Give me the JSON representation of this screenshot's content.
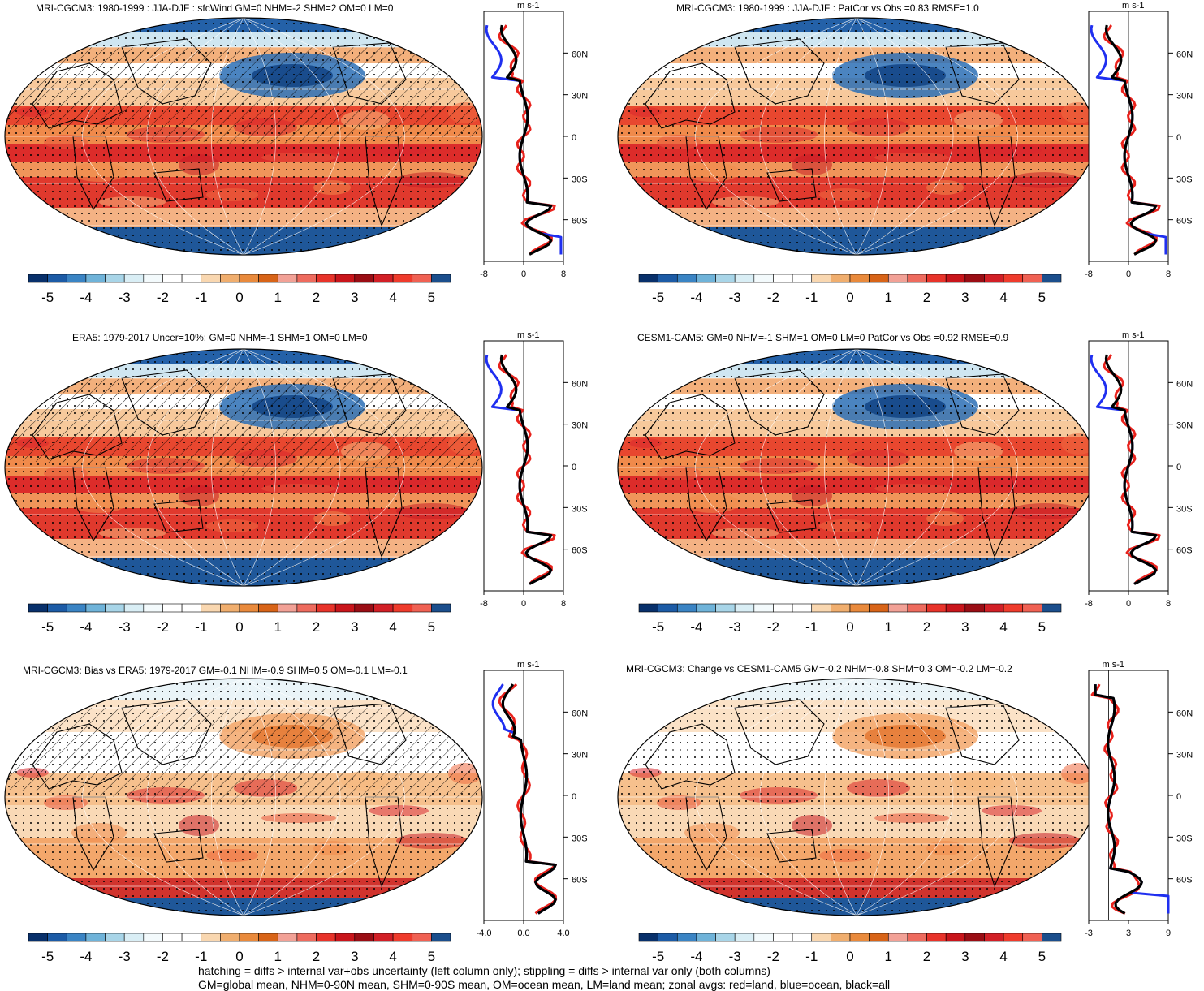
{
  "colorbar": {
    "labels": [
      "-5",
      "-4",
      "-3",
      "-2",
      "-1",
      "0",
      "1",
      "2",
      "3",
      "4",
      "5"
    ],
    "colors": [
      "#08306b",
      "#1c5ba6",
      "#3a84c4",
      "#6fb3d9",
      "#a8d5e8",
      "#d9eef5",
      "#f3fafc",
      "#ffffff",
      "#ffffff",
      "#f9d7b0",
      "#f0ae6e",
      "#e98a3c",
      "#d86418",
      "#f2a196",
      "#ee6b5e",
      "#e8332a",
      "#c9151b",
      "#9a0d14",
      "#d21f26",
      "#ef3b2c",
      "#f06153",
      "#1b4e8c"
    ]
  },
  "legend_colors": {
    "land": "#e8221c",
    "ocean": "#1f2ff0",
    "all": "#000000"
  },
  "footnote": [
    "hatching = diffs > internal var+obs uncertainty (left column only); stippling = diffs > internal var only (both columns)",
    "GM=global mean, NHM=0-90N mean, SHM=0-90S mean, OM=ocean mean, LM=land mean; zonal avgs: red=land, blue=ocean, black=all"
  ],
  "panels": [
    {
      "title": "MRI-CGCM3: 1980-1999 : JJA-DJF : sfcWind GM=0 NHM=-2 SHM=2 OM=0 LM=0",
      "unit": "m s-1",
      "lat_ticks": [
        "60N",
        "30N",
        "0",
        "30S",
        "60S"
      ],
      "x_ticks": [
        "-8",
        "0",
        "8"
      ],
      "chart_data": {
        "type": "line",
        "x_range": [
          -8,
          8
        ],
        "y_range": [
          -90,
          90
        ],
        "y_label_values": [
          60,
          30,
          0,
          -30,
          -60
        ],
        "series": [
          {
            "name": "land",
            "color": "#e8221c"
          },
          {
            "name": "ocean",
            "color": "#1f2ff0"
          },
          {
            "name": "all",
            "color": "#000000"
          }
        ]
      }
    },
    {
      "title": "MRI-CGCM3: 1980-1999 : JJA-DJF : PatCor vs Obs =0.83 RMSE=1.0",
      "unit": "m s-1",
      "lat_ticks": [
        "60N",
        "30N",
        "0",
        "30S",
        "60S"
      ],
      "x_ticks": [
        "-8",
        "0",
        "8"
      ],
      "chart_data": {
        "type": "line",
        "x_range": [
          -8,
          8
        ],
        "y_range": [
          -90,
          90
        ],
        "y_label_values": [
          60,
          30,
          0,
          -30,
          -60
        ],
        "series": [
          {
            "name": "land",
            "color": "#e8221c"
          },
          {
            "name": "ocean",
            "color": "#1f2ff0"
          },
          {
            "name": "all",
            "color": "#000000"
          }
        ]
      }
    },
    {
      "title": "ERA5: 1979-2017 Uncer=10%: GM=0 NHM=-1 SHM=1 OM=0 LM=0",
      "unit": "m s-1",
      "lat_ticks": [
        "60N",
        "30N",
        "0",
        "30S",
        "60S"
      ],
      "x_ticks": [
        "-8",
        "0",
        "8"
      ],
      "chart_data": {
        "type": "line",
        "x_range": [
          -8,
          8
        ],
        "y_range": [
          -90,
          90
        ],
        "y_label_values": [
          60,
          30,
          0,
          -30,
          -60
        ],
        "series": [
          {
            "name": "land",
            "color": "#e8221c"
          },
          {
            "name": "ocean",
            "color": "#1f2ff0"
          },
          {
            "name": "all",
            "color": "#000000"
          }
        ]
      }
    },
    {
      "title": "CESM1-CAM5: GM=0 NHM=-1 SHM=1 OM=0 LM=0 PatCor vs Obs =0.92 RMSE=0.9",
      "unit": "m s-1",
      "lat_ticks": [
        "60N",
        "30N",
        "0",
        "30S",
        "60S"
      ],
      "x_ticks": [
        "-8",
        "0",
        "8"
      ],
      "chart_data": {
        "type": "line",
        "x_range": [
          -8,
          8
        ],
        "y_range": [
          -90,
          90
        ],
        "y_label_values": [
          60,
          30,
          0,
          -30,
          -60
        ],
        "series": [
          {
            "name": "land",
            "color": "#e8221c"
          },
          {
            "name": "ocean",
            "color": "#1f2ff0"
          },
          {
            "name": "all",
            "color": "#000000"
          }
        ]
      }
    },
    {
      "title": "MRI-CGCM3: Bias vs ERA5: 1979-2017 GM=-0.1 NHM=-0.9 SHM=0.5 OM=-0.1 LM=-0.1",
      "unit": "m s-1",
      "lat_ticks": [
        "60N",
        "30N",
        "0",
        "30S",
        "60S"
      ],
      "x_ticks": [
        "-4.0",
        "0.0",
        "4.0"
      ],
      "chart_data": {
        "type": "line",
        "x_range": [
          -4,
          4
        ],
        "y_range": [
          -90,
          90
        ],
        "y_label_values": [
          60,
          30,
          0,
          -30,
          -60
        ],
        "series": [
          {
            "name": "land",
            "color": "#e8221c"
          },
          {
            "name": "ocean",
            "color": "#1f2ff0"
          },
          {
            "name": "all",
            "color": "#000000"
          }
        ]
      }
    },
    {
      "title": "MRI-CGCM3: Change vs CESM1-CAM5 GM=-0.2 NHM=-0.8 SHM=0.3 OM=-0.2 LM=-0.2",
      "unit": "m s-1",
      "lat_ticks": [
        "60N",
        "30N",
        "0",
        "30S",
        "60S"
      ],
      "x_ticks": [
        "-3",
        "3",
        "9"
      ],
      "chart_data": {
        "type": "line",
        "x_range": [
          -3,
          9
        ],
        "y_range": [
          -90,
          90
        ],
        "y_label_values": [
          60,
          30,
          0,
          -30,
          -60
        ],
        "series": [
          {
            "name": "land",
            "color": "#e8221c"
          },
          {
            "name": "ocean",
            "color": "#1f2ff0"
          },
          {
            "name": "all",
            "color": "#000000"
          }
        ]
      }
    }
  ]
}
